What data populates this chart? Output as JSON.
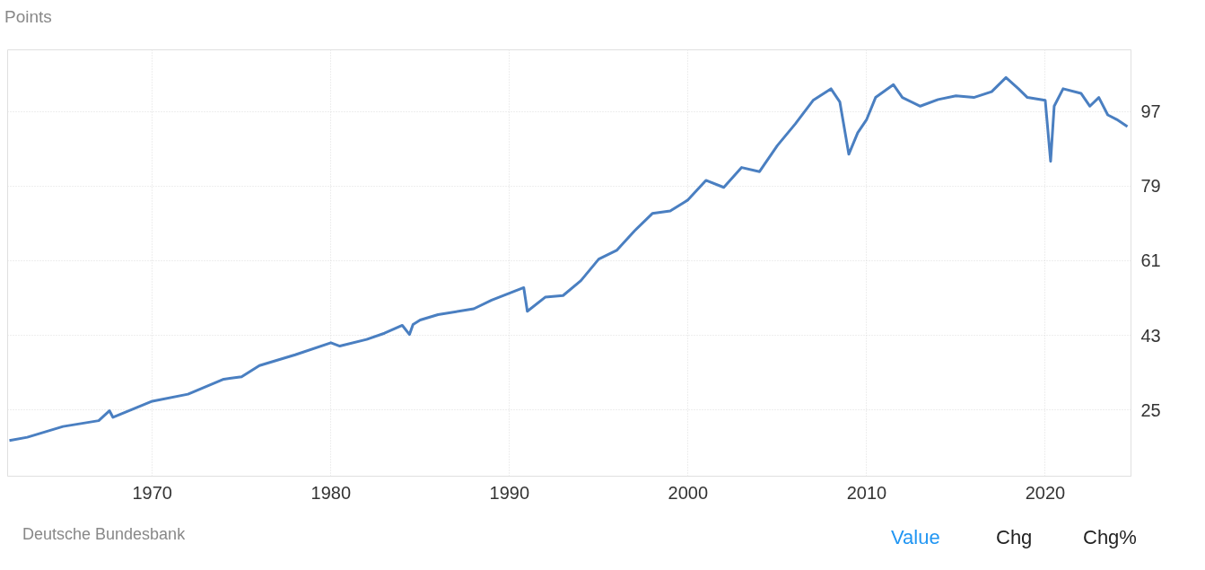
{
  "chart_data": {
    "type": "line",
    "ylabel": "Points",
    "x": [
      1962,
      1963,
      1965,
      1967,
      1967.6,
      1967.8,
      1970,
      1972,
      1974,
      1975,
      1976,
      1978,
      1980,
      1980.5,
      1982,
      1983,
      1984,
      1984.4,
      1984.6,
      1985,
      1986,
      1988,
      1989,
      1990.8,
      1991,
      1992,
      1993,
      1994,
      1995,
      1996,
      1997,
      1998,
      1999,
      2000,
      2001,
      2002,
      2003,
      2004,
      2005,
      2006,
      2007,
      2008,
      2008.5,
      2009,
      2009.5,
      2010,
      2010.5,
      2011.5,
      2012,
      2013,
      2014,
      2015,
      2016,
      2017,
      2017.8,
      2018.5,
      2019,
      2020,
      2020.3,
      2020.5,
      2021,
      2022,
      2022.5,
      2023,
      2023.5,
      2024,
      2024.6
    ],
    "series": [
      {
        "color": "#4a7fc1",
        "values": [
          17.6,
          18.4,
          21.0,
          22.4,
          24.8,
          23.2,
          27.1,
          28.8,
          32.4,
          33.0,
          35.7,
          38.3,
          41.2,
          40.4,
          42.0,
          43.5,
          45.4,
          43.2,
          45.6,
          46.7,
          48.0,
          49.4,
          51.5,
          54.5,
          48.8,
          52.2,
          52.6,
          56.2,
          61.4,
          63.5,
          68.2,
          72.4,
          73.0,
          75.7,
          80.4,
          78.7,
          83.5,
          82.5,
          88.8,
          94.0,
          99.7,
          102.5,
          99.3,
          86.7,
          91.9,
          95.1,
          100.4,
          103.5,
          100.4,
          98.3,
          99.9,
          100.8,
          100.4,
          101.8,
          105.2,
          102.5,
          100.4,
          99.7,
          85.0,
          98.3,
          102.5,
          101.4,
          98.3,
          100.4,
          96.2,
          95.1,
          93.4
        ]
      }
    ],
    "xlim": [
      1961.9,
      2024.8
    ],
    "ylim": [
      9,
      111.9
    ],
    "xticks": [
      1970,
      1980,
      1990,
      2000,
      2010,
      2020
    ],
    "yticks": [
      25,
      43,
      61,
      79,
      97
    ],
    "grid": true,
    "annotations": [
      "Deutsche Bundesbank",
      "Value",
      "Chg",
      "Chg%"
    ]
  }
}
